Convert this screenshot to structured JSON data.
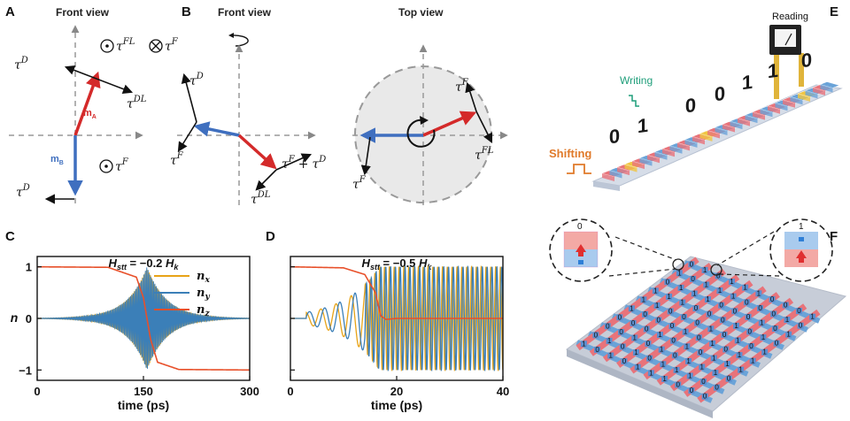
{
  "panels": {
    "A": {
      "label": "A",
      "title": "Front view",
      "m_A": "m",
      "m_A_sub": "A",
      "m_B": "m",
      "m_B_sub": "B",
      "tau": "τ",
      "sup_D": "D",
      "sup_FL": "FL",
      "sup_F": "F",
      "sup_DL": "DL"
    },
    "B": {
      "label": "B",
      "title_front": "Front view",
      "title_top": "Top view",
      "tau": "τ",
      "sup_D": "D",
      "sup_F": "F",
      "sup_DL": "DL",
      "sup_FL": "FL",
      "plus": "+"
    },
    "C": {
      "label": "C"
    },
    "D": {
      "label": "D"
    },
    "E": {
      "label": "E",
      "reading": "Reading",
      "writing": "Writing",
      "shifting": "Shifting",
      "bits": [
        "0",
        "1",
        "0",
        "0",
        "1",
        "1",
        "0"
      ]
    },
    "F": {
      "label": "F",
      "left_bit": "0",
      "right_bit": "1"
    }
  },
  "colors": {
    "m_A": "#d42a2a",
    "m_B": "#3f6fbf",
    "n_x": "#e8a317",
    "n_y": "#3b7fb8",
    "n_z": "#e8502a",
    "red_stripe": "#e8737a",
    "blue_stripe": "#6aa3d8",
    "yellow": "#f0c642"
  },
  "chart_data": [
    {
      "type": "line",
      "panel": "C",
      "title": "H_stt = −0.2 H_k",
      "title_parts": {
        "H": "H",
        "sub": "stt",
        "eq": " = −0.2 ",
        "Hk": "H",
        "Hk_sub": "k"
      },
      "xlabel": "time (ps)",
      "ylabel": "n",
      "xlim": [
        0,
        300
      ],
      "ylim": [
        -1.2,
        1.2
      ],
      "xticks": [
        "0",
        "150",
        "300"
      ],
      "yticks": [
        "1",
        "0",
        "−1"
      ],
      "legend": "top-right",
      "series": [
        {
          "name": "n",
          "sub": "x",
          "description_values": {
            "envelope_peak_at": 155,
            "amplitude_max": 1
          }
        },
        {
          "name": "n",
          "sub": "y",
          "description_values": {
            "envelope_peak_at": 155,
            "amplitude_max": 1
          }
        },
        {
          "name": "n",
          "sub": "z",
          "x": [
            0,
            100,
            140,
            150,
            155,
            160,
            170,
            200,
            300
          ],
          "values": [
            1,
            0.99,
            0.8,
            0.4,
            0,
            -0.4,
            -0.85,
            -0.99,
            -1
          ]
        }
      ]
    },
    {
      "type": "line",
      "panel": "D",
      "title": "H_stt = −0.5 H_k",
      "title_parts": {
        "H": "H",
        "sub": "stt",
        "eq": " = −0.5 ",
        "Hk": "H",
        "Hk_sub": "k"
      },
      "xlabel": "time (ps)",
      "xlim": [
        0,
        40
      ],
      "ylim": [
        -1.2,
        1.2
      ],
      "xticks": [
        "0",
        "20",
        "40"
      ],
      "series": [
        {
          "name": "n_x",
          "description_values": {
            "oscillation_start": 3,
            "saturation_at": 17,
            "amplitude_max": 1
          }
        },
        {
          "name": "n_y",
          "description_values": {
            "oscillation_start": 3,
            "saturation_at": 17,
            "amplitude_max": 1
          }
        },
        {
          "name": "n_z",
          "x": [
            0,
            10,
            14,
            16,
            17,
            18,
            20,
            40
          ],
          "values": [
            1,
            0.98,
            0.85,
            0.5,
            0.05,
            -0.02,
            0,
            0
          ]
        }
      ]
    }
  ]
}
